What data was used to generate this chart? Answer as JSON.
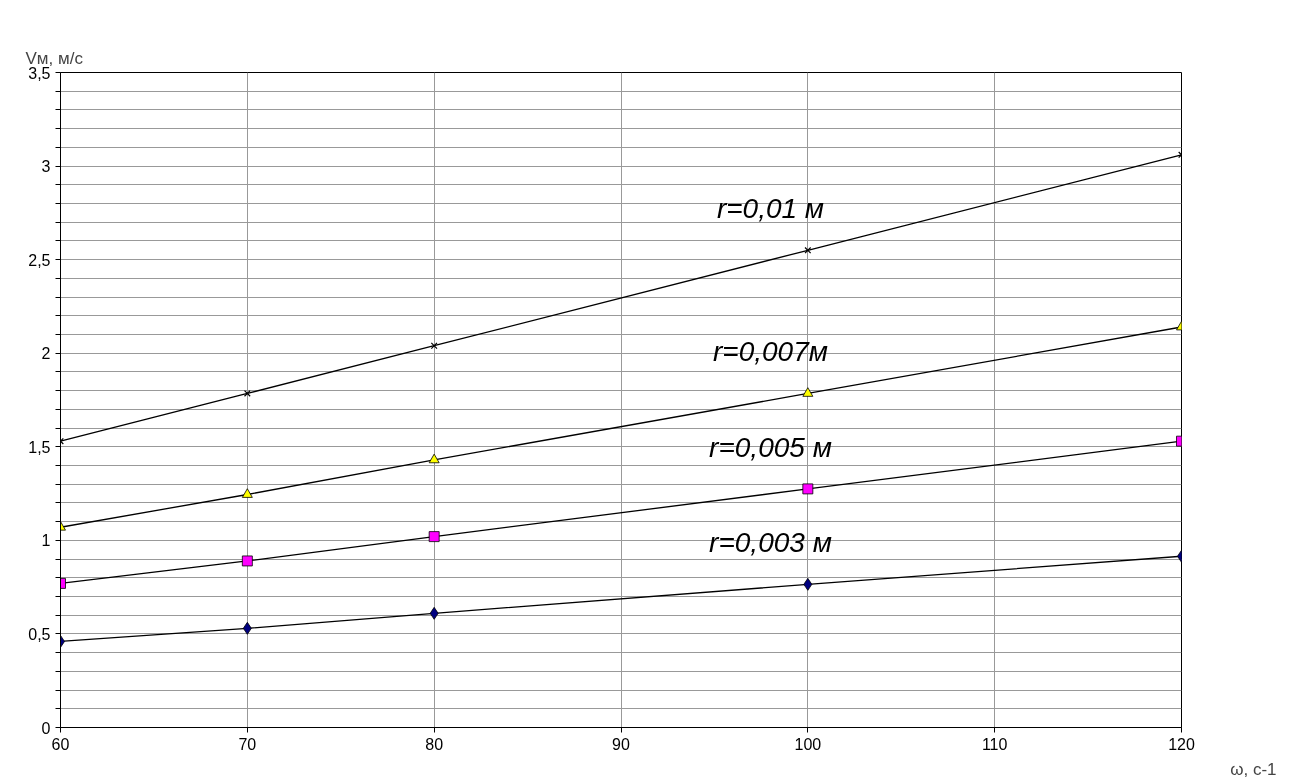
{
  "chart_data": {
    "type": "line",
    "xlabel": "ω, с-1",
    "ylabel": "Vм, м/с",
    "x": [
      60,
      70,
      80,
      100,
      120
    ],
    "series": [
      {
        "name": "r=0,01 м",
        "color": "#000000",
        "marker": "cross",
        "values": [
          1.53,
          1.785,
          2.04,
          2.55,
          3.06
        ]
      },
      {
        "name": "r=0,007м",
        "color": "#ffff00",
        "marker": "triangle",
        "values": [
          1.07,
          1.245,
          1.43,
          1.785,
          2.14
        ]
      },
      {
        "name": "r=0,005 м",
        "color": "#ff00ff",
        "marker": "square",
        "values": [
          0.77,
          0.89,
          1.02,
          1.275,
          1.53
        ]
      },
      {
        "name": "r=0,003 м",
        "color": "#000080",
        "marker": "diamond",
        "values": [
          0.46,
          0.53,
          0.61,
          0.765,
          0.915
        ]
      }
    ],
    "xlim": [
      60,
      120
    ],
    "xticks": [
      60,
      70,
      80,
      90,
      100,
      110,
      120
    ],
    "ylim": [
      0,
      3.5
    ],
    "yticks": [
      0,
      {
        "value": 0.1,
        "label": null
      },
      {
        "value": 0.2,
        "label": null
      },
      {
        "value": 0.3,
        "label": null
      },
      {
        "value": 0.4,
        "label": null
      },
      {
        "value": 0.5,
        "label": "0,5"
      },
      {
        "value": 0.6,
        "label": null
      },
      {
        "value": 0.7,
        "label": null
      },
      {
        "value": 0.8,
        "label": null
      },
      {
        "value": 0.9,
        "label": null
      },
      1,
      {
        "value": 1.1,
        "label": null
      },
      {
        "value": 1.2,
        "label": null
      },
      {
        "value": 1.3,
        "label": null
      },
      {
        "value": 1.4,
        "label": null
      },
      {
        "value": 1.5,
        "label": "1,5"
      },
      {
        "value": 1.6,
        "label": null
      },
      {
        "value": 1.7,
        "label": null
      },
      {
        "value": 1.8,
        "label": null
      },
      {
        "value": 1.9,
        "label": null
      },
      2,
      {
        "value": 2.1,
        "label": null
      },
      {
        "value": 2.2,
        "label": null
      },
      {
        "value": 2.3,
        "label": null
      },
      {
        "value": 2.4,
        "label": null
      },
      {
        "value": 2.5,
        "label": "2,5"
      },
      {
        "value": 2.6,
        "label": null
      },
      {
        "value": 2.7,
        "label": null
      },
      {
        "value": 2.8,
        "label": null
      },
      {
        "value": 2.9,
        "label": null
      },
      3,
      {
        "value": 3.1,
        "label": null
      },
      {
        "value": 3.2,
        "label": null
      },
      {
        "value": 3.3,
        "label": null
      },
      {
        "value": 3.4,
        "label": null
      },
      {
        "value": 3.5,
        "label": "3,5"
      }
    ],
    "grid": true,
    "line_style": "solid"
  }
}
